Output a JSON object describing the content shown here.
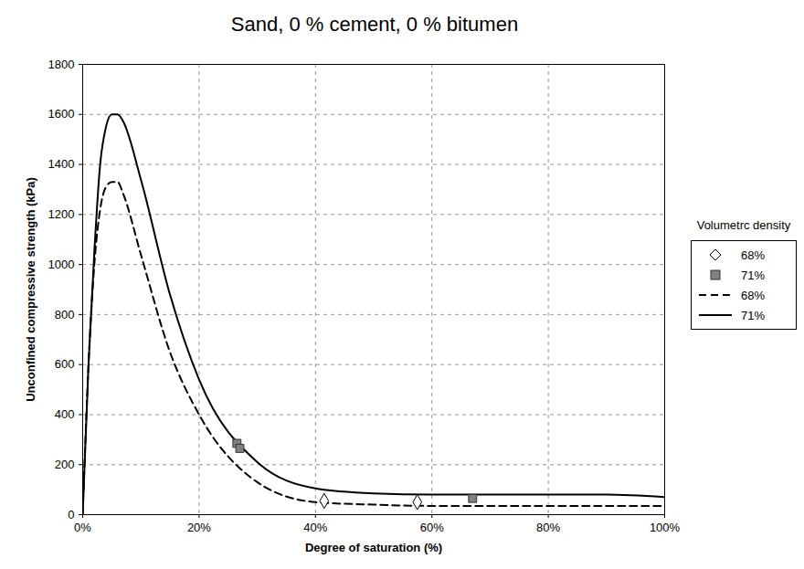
{
  "chart_data": {
    "type": "line",
    "title": "Sand, 0 % cement, 0 % bitumen",
    "x_label": "Degree of saturation (%)",
    "y_label": "Unconfined compressive strength (kPa)",
    "legend_title": "Volumetrc density",
    "legend": "right",
    "grid": true,
    "xlim": [
      0,
      100
    ],
    "xticks": [
      {
        "value": 0,
        "label": "0%"
      },
      {
        "value": 20,
        "label": "20%"
      },
      {
        "value": 40,
        "label": "40%"
      },
      {
        "value": 60,
        "label": "60%"
      },
      {
        "value": 80,
        "label": "80%"
      },
      {
        "value": 100,
        "label": "100%"
      }
    ],
    "ylim": [
      0,
      1800
    ],
    "yticks": [
      0,
      200,
      400,
      600,
      800,
      1000,
      1200,
      1400,
      1600,
      1800
    ],
    "series": [
      {
        "name": "68%",
        "type": "scatter",
        "marker": "diamond",
        "color": "#000000",
        "x": [
          41.5,
          57.5
        ],
        "values": [
          55,
          50
        ]
      },
      {
        "name": "71%",
        "type": "scatter",
        "marker": "square",
        "color": "#808080",
        "x": [
          26.5,
          27,
          67
        ],
        "values": [
          285,
          265,
          65
        ]
      },
      {
        "name": "68%",
        "type": "line",
        "line_style": "dashed",
        "color": "#000000",
        "x": [
          0,
          1,
          2,
          3,
          4,
          5,
          6,
          7,
          10,
          15,
          20,
          30,
          40,
          50,
          60,
          70,
          80,
          90,
          100
        ],
        "values": [
          0,
          600,
          1000,
          1220,
          1310,
          1330,
          1330,
          1280,
          1040,
          650,
          400,
          130,
          50,
          40,
          35,
          35,
          35,
          35,
          35
        ]
      },
      {
        "name": "71%",
        "type": "line",
        "line_style": "solid",
        "color": "#000000",
        "x": [
          0,
          1,
          2,
          3,
          4,
          5,
          6,
          7,
          10,
          15,
          20,
          30,
          40,
          50,
          60,
          70,
          80,
          90,
          100
        ],
        "values": [
          0,
          600,
          1050,
          1400,
          1550,
          1600,
          1600,
          1570,
          1340,
          880,
          540,
          210,
          105,
          85,
          80,
          80,
          80,
          80,
          70
        ]
      }
    ]
  }
}
